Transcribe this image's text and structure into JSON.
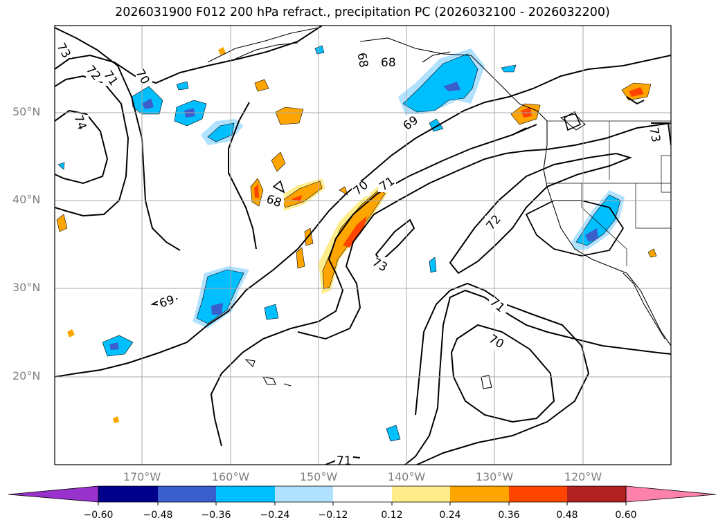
{
  "title": "2026031900 F012 200 hPa refract., precipitation PC (2026032100 - 2026032200)",
  "lat_labels": [
    "50°N",
    "40°N",
    "30°N",
    "20°N"
  ],
  "lon_labels": [
    "170°W",
    "160°W",
    "150°W",
    "140°W",
    "130°W",
    "120°W"
  ],
  "contour_labels": [
    "73",
    "72",
    "71",
    "70",
    "74",
    "68",
    "68",
    "69",
    "70",
    "71",
    "68",
    "69",
    "73",
    "72",
    "71",
    "70",
    "73",
    "71"
  ],
  "colorbar": {
    "ticks": [
      "−0.60",
      "−0.48",
      "−0.36",
      "−0.24",
      "−0.12",
      "0.12",
      "0.24",
      "0.36",
      "0.48",
      "0.60"
    ],
    "colors": [
      "#9932cc",
      "#00008b",
      "#3a5fcd",
      "#00bfff",
      "#b0e2ff",
      "#ffffff",
      "#ffec8b",
      "#ffa500",
      "#ff4500",
      "#b22222",
      "#ff82ab",
      "#ff82ab"
    ]
  },
  "shading_colors": {
    "neg_light": "#b0e2ff",
    "neg_mid": "#00bfff",
    "neg_dark": "#3a5fcd",
    "pos_light": "#ffec8b",
    "pos_mid": "#ffa500",
    "pos_dark": "#ff4500",
    "pos_strong": "#b22222"
  }
}
